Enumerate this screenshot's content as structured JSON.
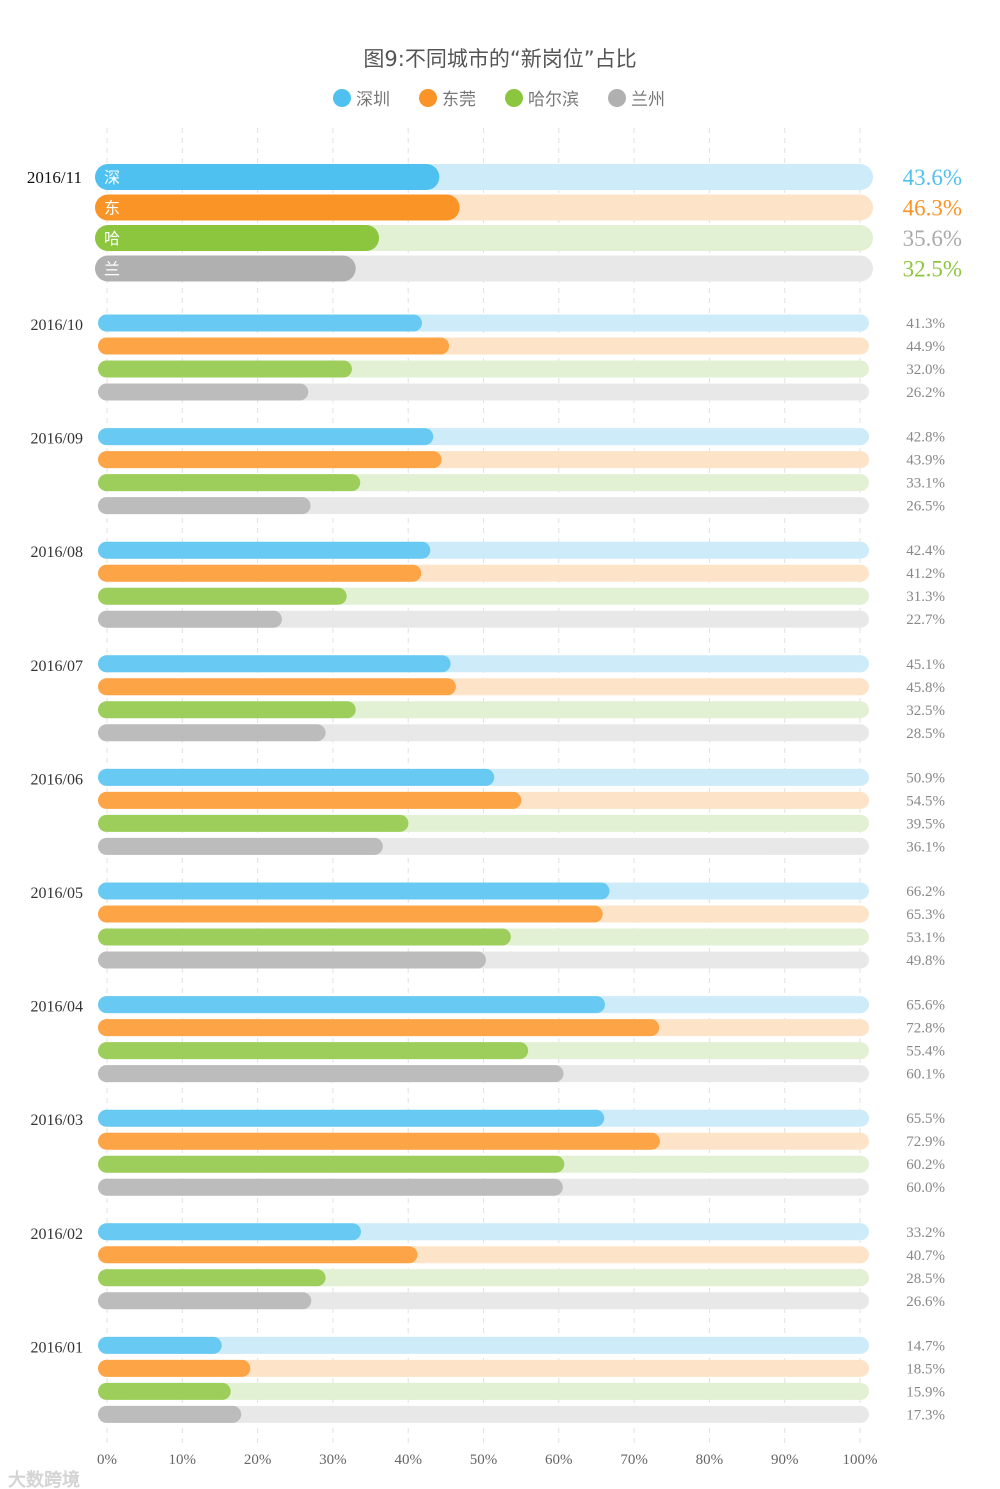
{
  "chart_data": {
    "type": "bar",
    "orientation": "horizontal",
    "title": "图9:不同城市的“新岗位”占比",
    "xlabel": "",
    "ylabel": "",
    "xlim": [
      0,
      100
    ],
    "x_ticks": [
      "0%",
      "10%",
      "20%",
      "30%",
      "40%",
      "50%",
      "60%",
      "70%",
      "80%",
      "90%",
      "100%"
    ],
    "grid": true,
    "legend_position": "top-center",
    "categories": [
      "2016/11",
      "2016/10",
      "2016/09",
      "2016/08",
      "2016/07",
      "2016/06",
      "2016/05",
      "2016/04",
      "2016/03",
      "2016/02",
      "2016/01"
    ],
    "series": [
      {
        "name": "深圳",
        "short": "深",
        "color": "#4fc1f0",
        "light": "#cdebf9",
        "values": [
          43.6,
          41.3,
          42.8,
          42.4,
          45.1,
          50.9,
          66.2,
          65.6,
          65.5,
          33.2,
          14.7
        ],
        "labels": [
          "43.6%",
          "41.3%",
          "42.8%",
          "42.4%",
          "45.1%",
          "50.9%",
          "66.2%",
          "65.6%",
          "65.5%",
          "33.2%",
          "14.7%"
        ]
      },
      {
        "name": "东莞",
        "short": "东",
        "color": "#fb9426",
        "light": "#fde3c7",
        "values": [
          46.3,
          44.9,
          43.9,
          41.2,
          45.8,
          54.5,
          65.3,
          72.8,
          72.9,
          40.7,
          18.5
        ],
        "labels": [
          "46.3%",
          "44.9%",
          "43.9%",
          "41.2%",
          "45.8%",
          "54.5%",
          "65.3%",
          "72.8%",
          "72.9%",
          "40.7%",
          "18.5%"
        ]
      },
      {
        "name": "哈尔滨",
        "short": "哈",
        "color": "#8cc63f",
        "light": "#e2f0d3",
        "values": [
          35.6,
          32.0,
          33.1,
          31.3,
          32.5,
          39.5,
          53.1,
          55.4,
          60.2,
          28.5,
          15.9
        ],
        "labels": [
          "35.6%",
          "32.0%",
          "33.1%",
          "31.3%",
          "32.5%",
          "39.5%",
          "53.1%",
          "55.4%",
          "60.2%",
          "28.5%",
          "15.9%"
        ]
      },
      {
        "name": "兰州",
        "short": "兰",
        "color": "#b0b0b0",
        "light": "#e8e8e8",
        "values": [
          32.5,
          26.2,
          26.5,
          22.7,
          28.5,
          36.1,
          49.8,
          60.1,
          60.0,
          26.6,
          17.3
        ],
        "labels": [
          "32.5%",
          "26.2%",
          "26.5%",
          "22.7%",
          "28.5%",
          "36.1%",
          "49.8%",
          "60.1%",
          "60.0%",
          "26.6%",
          "17.3%"
        ]
      }
    ],
    "highlight_label_colors": [
      "#4fc1f0",
      "#fb9426",
      "#aaaaaa",
      "#8cc63f"
    ]
  },
  "watermark": "大数跨境"
}
